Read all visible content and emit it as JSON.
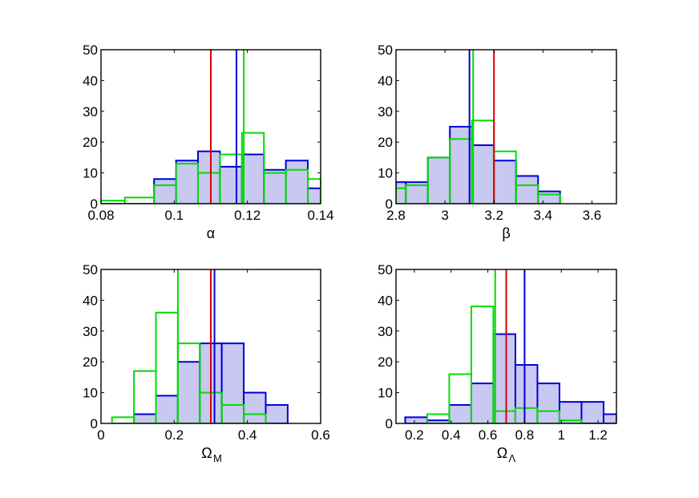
{
  "chart_data": [
    {
      "type": "histogram",
      "xlabel": "α",
      "xlim": [
        0.08,
        0.14
      ],
      "ylim": [
        0,
        50
      ],
      "xticks": [
        "0.08",
        "0.1",
        "0.12",
        "0.14"
      ],
      "xtick_values": [
        0.08,
        0.1,
        0.12,
        0.14
      ],
      "yticks": [
        "0",
        "10",
        "20",
        "30",
        "40",
        "50"
      ],
      "bin_edges": [
        0.08,
        0.0865,
        0.0945,
        0.1005,
        0.1065,
        0.1125,
        0.1185,
        0.1245,
        0.1305,
        0.1365,
        0.14
      ],
      "series": [
        {
          "values": [
            0,
            0,
            8,
            14,
            17,
            12,
            16,
            11,
            14,
            5
          ],
          "color": "#0000dd",
          "fill": "#c8c8f0"
        },
        {
          "values": [
            1,
            2,
            6,
            13,
            10,
            16,
            23,
            10,
            11,
            8
          ],
          "color": "#00dd00"
        }
      ],
      "vlines": [
        {
          "x": 0.11,
          "color": "#dd0000"
        },
        {
          "x": 0.117,
          "color": "#0000dd"
        },
        {
          "x": 0.119,
          "color": "#00dd00"
        }
      ]
    },
    {
      "type": "histogram",
      "xlabel": "β",
      "xlim": [
        2.8,
        3.7
      ],
      "ylim": [
        0,
        50
      ],
      "xticks": [
        "2.8",
        "3",
        "3.2",
        "3.4",
        "3.6"
      ],
      "xtick_values": [
        2.8,
        3.0,
        3.2,
        3.4,
        3.6
      ],
      "yticks": [
        "0",
        "10",
        "20",
        "30",
        "40",
        "50"
      ],
      "bin_edges": [
        2.8,
        2.84,
        2.93,
        3.02,
        3.11,
        3.2,
        3.29,
        3.38,
        3.47,
        3.56,
        3.7
      ],
      "series": [
        {
          "values": [
            7,
            7,
            15,
            25,
            19,
            14,
            9,
            4,
            0,
            0
          ],
          "color": "#0000dd",
          "fill": "#c8c8f0"
        },
        {
          "values": [
            5,
            6,
            15,
            21,
            27,
            17,
            6,
            3,
            0,
            0
          ],
          "color": "#00dd00"
        }
      ],
      "vlines": [
        {
          "x": 3.1,
          "color": "#0000dd"
        },
        {
          "x": 3.115,
          "color": "#00dd00"
        },
        {
          "x": 3.2,
          "color": "#dd0000"
        }
      ]
    },
    {
      "type": "histogram",
      "xlabel": "Ω",
      "xlabel_sub": "M",
      "xlim": [
        0,
        0.6
      ],
      "ylim": [
        0,
        50
      ],
      "xticks": [
        "0",
        "0.2",
        "0.4",
        "0.6"
      ],
      "xtick_values": [
        0,
        0.2,
        0.4,
        0.6
      ],
      "yticks": [
        "0",
        "10",
        "20",
        "30",
        "40",
        "50"
      ],
      "bin_edges": [
        0.03,
        0.09,
        0.15,
        0.21,
        0.27,
        0.33,
        0.39,
        0.45,
        0.51,
        0.6
      ],
      "series": [
        {
          "values": [
            0,
            3,
            9,
            20,
            26,
            26,
            10,
            6,
            0
          ],
          "color": "#0000dd",
          "fill": "#c8c8f0"
        },
        {
          "values": [
            2,
            17,
            36,
            26,
            10,
            6,
            3,
            0,
            0
          ],
          "color": "#00dd00"
        }
      ],
      "vlines": [
        {
          "x": 0.21,
          "color": "#00dd00"
        },
        {
          "x": 0.3,
          "color": "#dd0000"
        },
        {
          "x": 0.31,
          "color": "#0000dd"
        }
      ]
    },
    {
      "type": "histogram",
      "xlabel": "Ω",
      "xlabel_sub": "Λ",
      "xlim": [
        0.1,
        1.3
      ],
      "ylim": [
        0,
        50
      ],
      "xticks": [
        "0.2",
        "0.4",
        "0.6",
        "0.8",
        "1",
        "1.2"
      ],
      "xtick_values": [
        0.2,
        0.4,
        0.6,
        0.8,
        1.0,
        1.2
      ],
      "yticks": [
        "0",
        "10",
        "20",
        "30",
        "40",
        "50"
      ],
      "bin_edges": [
        0.15,
        0.27,
        0.39,
        0.51,
        0.63,
        0.75,
        0.87,
        0.99,
        1.11,
        1.23,
        1.3
      ],
      "series": [
        {
          "values": [
            2,
            1,
            6,
            13,
            29,
            19,
            13,
            7,
            7,
            3
          ],
          "color": "#0000dd",
          "fill": "#c8c8f0"
        },
        {
          "values": [
            0,
            3,
            16,
            38,
            4,
            5,
            4,
            1,
            0,
            0
          ],
          "color": "#00dd00"
        }
      ],
      "vlines": [
        {
          "x": 0.64,
          "color": "#00dd00"
        },
        {
          "x": 0.7,
          "color": "#dd0000"
        },
        {
          "x": 0.8,
          "color": "#0000dd"
        }
      ]
    }
  ]
}
